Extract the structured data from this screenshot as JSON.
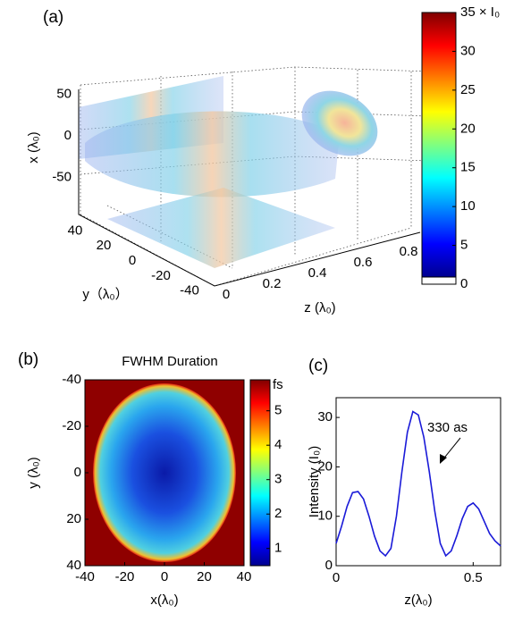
{
  "chart_data": [
    {
      "type": "volume3d",
      "label": "(a)",
      "x_label": "x (λ₀)",
      "y_label": "y（λ₀）",
      "z_label": "z (λ₀)",
      "xticks": [
        50,
        0,
        -50
      ],
      "yticks": [
        40,
        20,
        0,
        -20,
        -40
      ],
      "zticks": [
        0,
        0.2,
        0.4,
        0.6,
        0.8
      ],
      "colorbar": {
        "colormap": "jet",
        "lim": [
          0,
          35
        ],
        "ticks": [
          0,
          5,
          10,
          15,
          20,
          25,
          30,
          {
            "value": 35,
            "label": "35 × I₀"
          }
        ]
      }
    },
    {
      "type": "heatmap",
      "label": "(b)",
      "title": "FWHM Duration",
      "xlabel": "x(λ₀)",
      "ylabel": "y (λ₀)",
      "xlim": [
        -40,
        40
      ],
      "ylim": [
        -40,
        40
      ],
      "y_reversed": true,
      "xticks": [
        -40,
        -20,
        0,
        20,
        40
      ],
      "yticks": [
        -40,
        -20,
        0,
        20,
        40
      ],
      "colorbar": {
        "colormap": "jet",
        "label": "fs",
        "lim": [
          0.5,
          5.9
        ],
        "ticks": [
          1,
          2,
          3,
          4,
          5
        ]
      }
    },
    {
      "type": "line",
      "label": "(c)",
      "xlabel": "z(λ₀)",
      "ylabel": "Intensity (I₀)",
      "color": "#1a1ad8",
      "x": [
        0,
        0.02,
        0.04,
        0.06,
        0.08,
        0.1,
        0.12,
        0.14,
        0.16,
        0.18,
        0.2,
        0.22,
        0.24,
        0.26,
        0.28,
        0.3,
        0.32,
        0.34,
        0.36,
        0.38,
        0.4,
        0.42,
        0.44,
        0.46,
        0.48,
        0.5,
        0.52,
        0.54,
        0.56,
        0.58,
        0.6
      ],
      "values": [
        4.5,
        8,
        12,
        14.8,
        15,
        13.5,
        10,
        6,
        3,
        2,
        3.5,
        10,
        19,
        27,
        31.2,
        30.5,
        26,
        19,
        11,
        4.5,
        2,
        3,
        6,
        9.5,
        12,
        12.7,
        11.5,
        9,
        6.5,
        5,
        4
      ],
      "xlim": [
        0,
        0.6
      ],
      "ylim": [
        0,
        34
      ],
      "xticks": [
        0,
        0.5
      ],
      "yticks": [
        0,
        10,
        20,
        30
      ],
      "annotation": "330 as"
    }
  ]
}
